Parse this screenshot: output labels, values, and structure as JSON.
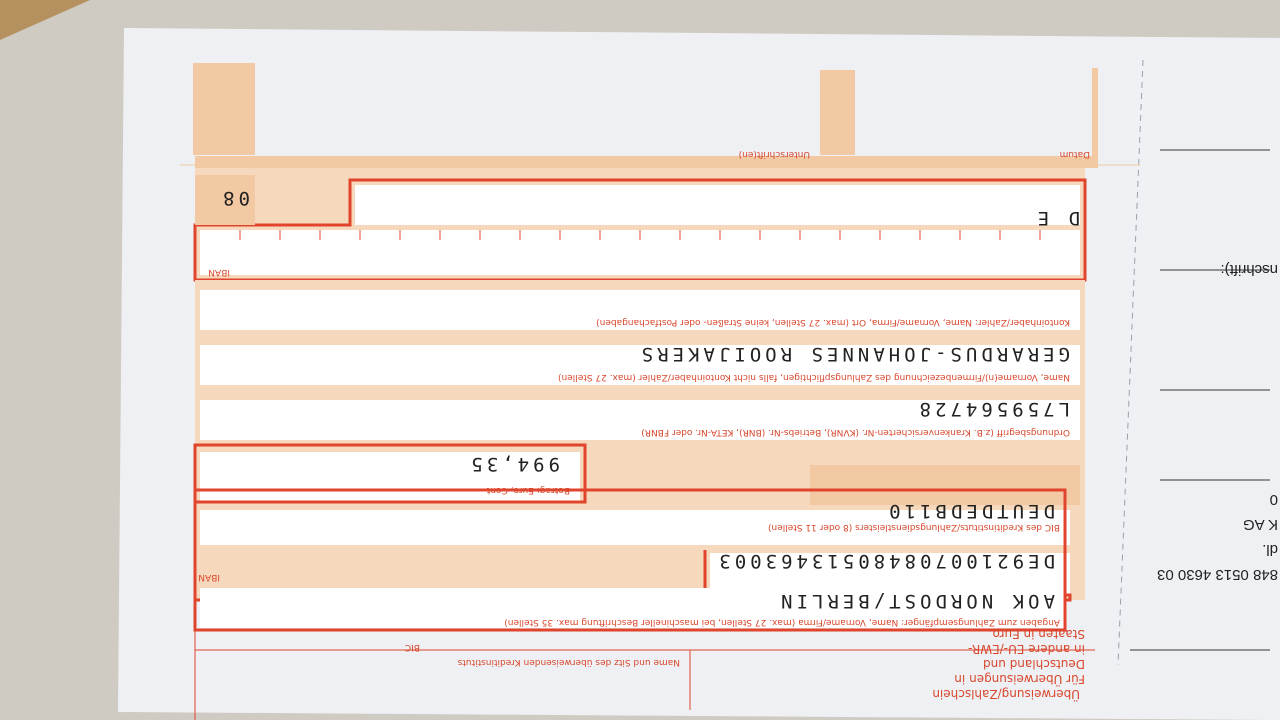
{
  "form": {
    "title": "Überweisung/Zahlschein",
    "notice_lines": [
      "Für Überweisungen in",
      "Deutschland und",
      "in andere EU-/EWR-",
      "Staaten in Euro."
    ],
    "labels": {
      "bank_name": "Name und Sitz des überweisenden Kreditinstituts",
      "bic_top": "BIC",
      "recipient": "Angaben zum Zahlungsempfänger: Name, Vorname/Firma (max. 27 Stellen, bei maschineller Beschriftung max. 35 Stellen)",
      "iban": "IBAN",
      "bic": "BIC des Kreditinstituts/Zahlungsdienstleisters (8 oder 11 Stellen)",
      "amount": "Betrag: Euro, Cent",
      "reference": "Ordnungsbegriff (z.B. Krankenversicherten-Nr. (KVNR), Betriebs-Nr. (BNR), KETA-Nr. oder FBNR)",
      "payer_name": "Name, Vorname(n)/Firmenbezeichnung des Zahlungspflichtigen, falls nicht Kontoinhaber/Zahler (max. 27 Stellen)",
      "account_holder": "Kontoinhaber/Zahler: Name, Vorname/Firma, Ort (max. 27 Stellen, keine Straßen- oder Postfachangaben)",
      "iban_payer": "IBAN",
      "signature": "Unterschrift(en)",
      "date": "Datum"
    },
    "values": {
      "recipient": "AOK NORDOST/BERLIN",
      "iban": "DE92100708480513463003",
      "bic": "DEUTDEDB110",
      "amount": "994,35",
      "reference": "L759564728",
      "payer_name": "GERARDUS-JOHANNES ROOIJAKERS",
      "iban_payer_prefix": "D E",
      "code": "08"
    }
  },
  "stub": {
    "lines": [
      "848 0513 4630 03",
      "dl.",
      "K AG",
      "0"
    ],
    "label": "nschrift):"
  }
}
